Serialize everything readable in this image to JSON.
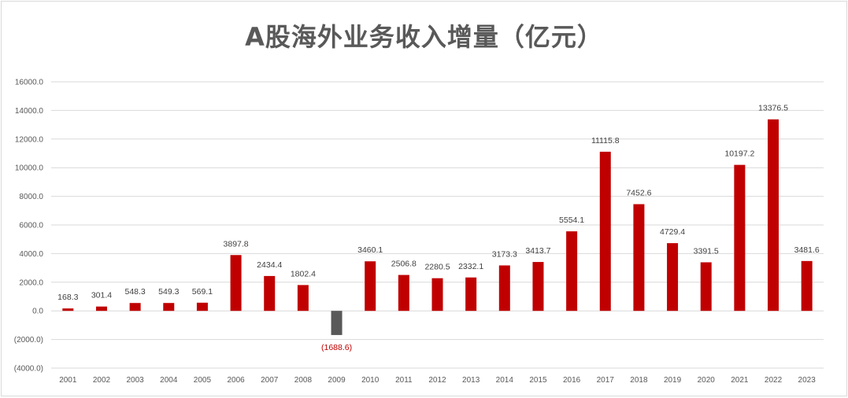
{
  "chart_data": {
    "type": "bar",
    "title": "A股海外业务收入增量（亿元）",
    "xlabel": "",
    "ylabel": "",
    "ylim": [
      -4000,
      16000
    ],
    "y_ticks": [
      16000,
      14000,
      12000,
      10000,
      8000,
      6000,
      4000,
      2000,
      0,
      -2000,
      -4000
    ],
    "y_tick_labels": [
      "16000.0",
      "14000.0",
      "12000.0",
      "10000.0",
      "8000.0",
      "6000.0",
      "4000.0",
      "2000.0",
      "0.0",
      "(2000.0)",
      "(4000.0)"
    ],
    "grid": true,
    "legend": "none",
    "categories": [
      "2001",
      "2002",
      "2003",
      "2004",
      "2005",
      "2006",
      "2007",
      "2008",
      "2009",
      "2010",
      "2011",
      "2012",
      "2013",
      "2014",
      "2015",
      "2016",
      "2017",
      "2018",
      "2019",
      "2020",
      "2021",
      "2022",
      "2023"
    ],
    "values": [
      168.3,
      301.4,
      548.3,
      549.3,
      569.1,
      3897.8,
      2434.4,
      1802.4,
      -1688.6,
      3460.1,
      2506.8,
      2280.5,
      2332.1,
      3173.3,
      3413.7,
      5554.1,
      11115.8,
      7452.6,
      4729.4,
      3391.5,
      10197.2,
      13376.5,
      3481.6
    ],
    "data_labels": [
      "168.3",
      "301.4",
      "548.3",
      "549.3",
      "569.1",
      "3897.8",
      "2434.4",
      "1802.4",
      "(1688.6)",
      "3460.1",
      "2506.8",
      "2280.5",
      "2332.1",
      "3173.3",
      "3413.7",
      "5554.1",
      "11115.8",
      "7452.6",
      "4729.4",
      "3391.5",
      "10197.2",
      "13376.5",
      "3481.6"
    ],
    "colors": {
      "positive_bar": "#c00000",
      "negative_bar": "#595959",
      "negative_label": "#c00000",
      "title": "#595959",
      "grid": "#d9d9d9"
    }
  }
}
